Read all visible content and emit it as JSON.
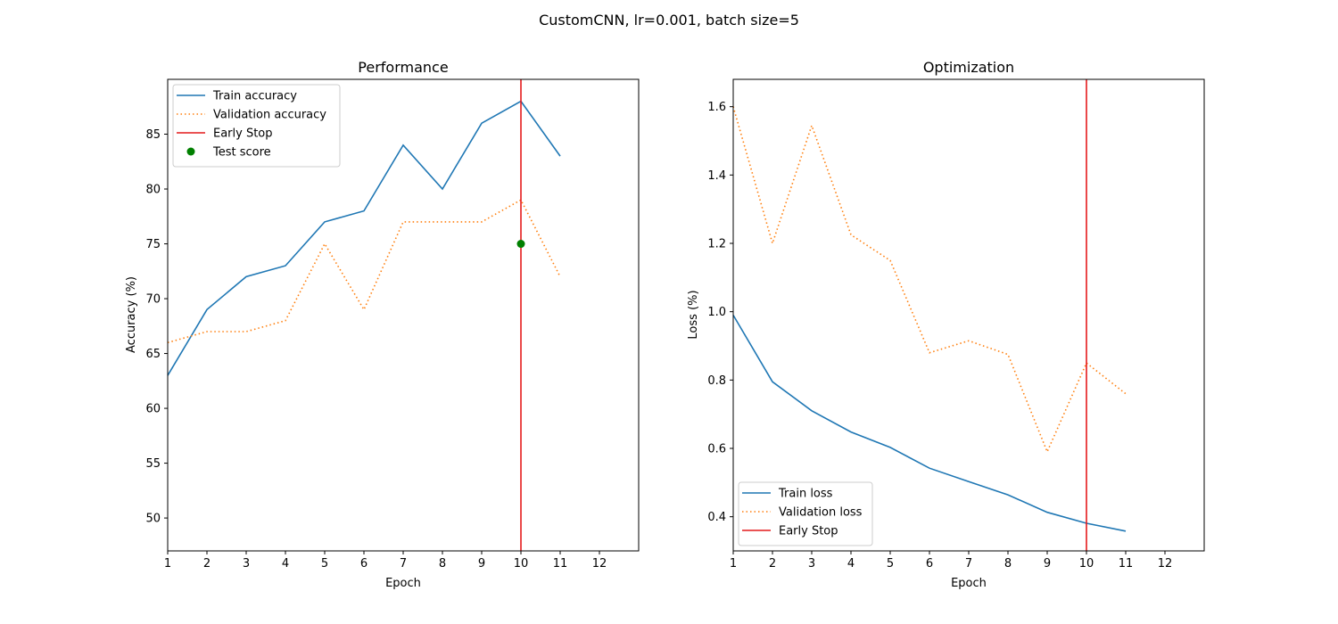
{
  "figure": {
    "title": "CustomCNN, lr=0.001, batch size=5"
  },
  "chart_data": [
    {
      "type": "line",
      "title": "Performance",
      "xlabel": "Epoch",
      "ylabel": "Accuracy (%)",
      "xlim": [
        1,
        13
      ],
      "ylim": [
        47,
        90
      ],
      "xticks": [
        1,
        2,
        3,
        4,
        5,
        6,
        7,
        8,
        9,
        10,
        11,
        12
      ],
      "yticks": [
        50,
        55,
        60,
        65,
        70,
        75,
        80,
        85
      ],
      "grid": false,
      "legend": "top-left",
      "series": [
        {
          "name": "Train accuracy",
          "style": "solid",
          "color": "#1f77b4",
          "x": [
            1,
            2,
            3,
            4,
            5,
            6,
            7,
            8,
            9,
            10,
            11
          ],
          "y": [
            63,
            69,
            72,
            73,
            77,
            78,
            84,
            80,
            86,
            88,
            83
          ]
        },
        {
          "name": "Validation accuracy",
          "style": "dotted",
          "color": "#ff7f0e",
          "x": [
            1,
            2,
            3,
            4,
            5,
            6,
            7,
            8,
            9,
            10,
            11
          ],
          "y": [
            66,
            67,
            67,
            68,
            75,
            69,
            77,
            77,
            77,
            79,
            72
          ]
        }
      ],
      "vline": {
        "name": "Early Stop",
        "x": 10,
        "color": "#e41a1c"
      },
      "point": {
        "name": "Test score",
        "x": 10,
        "y": 75,
        "color": "#008000"
      }
    },
    {
      "type": "line",
      "title": "Optimization",
      "xlabel": "Epoch",
      "ylabel": "Loss (%)",
      "xlim": [
        1,
        13
      ],
      "ylim": [
        0.3,
        1.68
      ],
      "xticks": [
        1,
        2,
        3,
        4,
        5,
        6,
        7,
        8,
        9,
        10,
        11,
        12
      ],
      "yticks": [
        0.4,
        0.6,
        0.8,
        1.0,
        1.2,
        1.4,
        1.6
      ],
      "ytick_labels": [
        "0.4",
        "0.6",
        "0.8",
        "1.0",
        "1.2",
        "1.4",
        "1.6"
      ],
      "grid": false,
      "legend": "bottom-left",
      "series": [
        {
          "name": "Train loss",
          "style": "solid",
          "color": "#1f77b4",
          "x": [
            1,
            2,
            3,
            4,
            5,
            6,
            7,
            8,
            9,
            10,
            11
          ],
          "y": [
            0.99,
            0.795,
            0.71,
            0.648,
            0.603,
            0.542,
            0.503,
            0.464,
            0.413,
            0.381,
            0.358
          ]
        },
        {
          "name": "Validation loss",
          "style": "dotted",
          "color": "#ff7f0e",
          "x": [
            1,
            2,
            3,
            4,
            5,
            6,
            7,
            8,
            9,
            10,
            11
          ],
          "y": [
            1.6,
            1.2,
            1.545,
            1.225,
            1.15,
            0.88,
            0.915,
            0.875,
            0.59,
            0.85,
            0.76
          ]
        }
      ],
      "vline": {
        "name": "Early Stop",
        "x": 10,
        "color": "#e41a1c"
      }
    }
  ]
}
